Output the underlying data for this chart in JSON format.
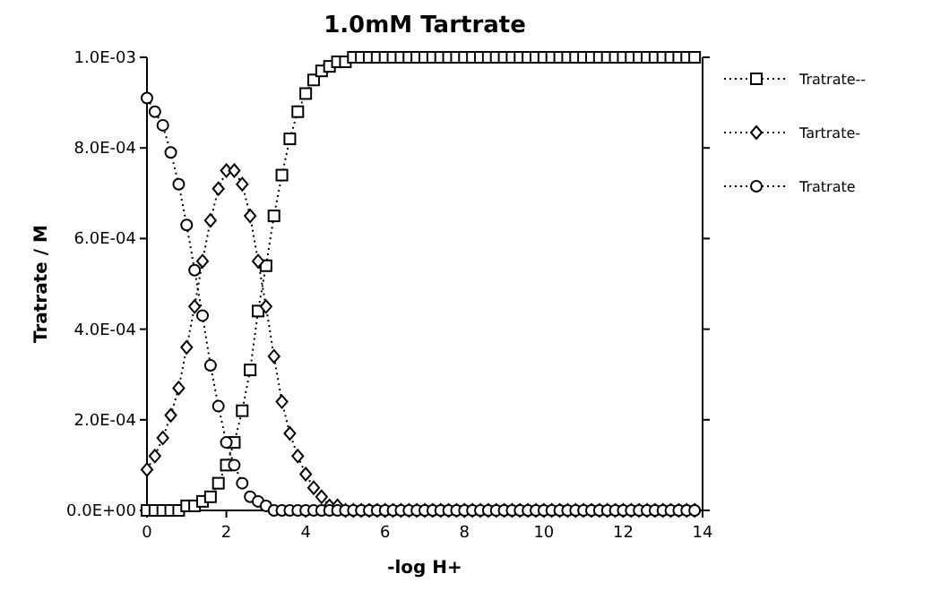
{
  "chart_data": {
    "type": "line",
    "title": "1.0mM Tartrate",
    "xlabel": "-log H+",
    "ylabel": "Tratrate / M",
    "x": [
      0,
      0.2,
      0.4,
      0.6,
      0.8,
      1,
      1.2,
      1.4,
      1.6,
      1.8,
      2,
      2.2,
      2.4,
      2.6,
      2.8,
      3,
      3.2,
      3.4,
      3.6,
      3.8,
      4,
      4.2,
      4.4,
      4.6,
      4.8,
      5,
      5.2,
      5.4,
      5.6,
      5.8,
      6,
      6.2,
      6.4,
      6.6,
      6.8,
      7,
      7.2,
      7.4,
      7.6,
      7.8,
      8,
      8.2,
      8.4,
      8.6,
      8.8,
      9,
      9.2,
      9.4,
      9.6,
      9.8,
      10,
      10.2,
      10.4,
      10.6,
      10.8,
      11,
      11.2,
      11.4,
      11.6,
      11.8,
      12,
      12.2,
      12.4,
      12.6,
      12.8,
      13,
      13.2,
      13.4,
      13.6,
      13.8
    ],
    "series": [
      {
        "name": "Tratrate--",
        "color": "#000000",
        "marker": "square",
        "values": [
          0,
          0,
          0,
          0,
          0,
          1e-05,
          1e-05,
          2e-05,
          3e-05,
          6e-05,
          0.0001,
          0.00015,
          0.00022,
          0.00031,
          0.00044,
          0.00054,
          0.00065,
          0.00074,
          0.00082,
          0.00088,
          0.00092,
          0.00095,
          0.00097,
          0.00098,
          0.00099,
          0.00099,
          0.001,
          0.001,
          0.001,
          0.001,
          0.001,
          0.001,
          0.001,
          0.001,
          0.001,
          0.001,
          0.001,
          0.001,
          0.001,
          0.001,
          0.001,
          0.001,
          0.001,
          0.001,
          0.001,
          0.001,
          0.001,
          0.001,
          0.001,
          0.001,
          0.001,
          0.001,
          0.001,
          0.001,
          0.001,
          0.001,
          0.001,
          0.001,
          0.001,
          0.001,
          0.001,
          0.001,
          0.001,
          0.001,
          0.001,
          0.001,
          0.001,
          0.001,
          0.001,
          0.001
        ]
      },
      {
        "name": "Tartrate-",
        "color": "#000000",
        "marker": "diamond",
        "values": [
          9e-05,
          0.00012,
          0.00016,
          0.00021,
          0.00027,
          0.00036,
          0.00045,
          0.00055,
          0.00064,
          0.00071,
          0.00075,
          0.00075,
          0.00072,
          0.00065,
          0.00055,
          0.00045,
          0.00034,
          0.00024,
          0.00017,
          0.00012,
          8e-05,
          5e-05,
          3e-05,
          1e-05,
          1e-05,
          0,
          0,
          0,
          0,
          0,
          0,
          0,
          0,
          0,
          0,
          0,
          0,
          0,
          0,
          0,
          0,
          0,
          0,
          0,
          0,
          0,
          0,
          0,
          0,
          0,
          0,
          0,
          0,
          0,
          0,
          0,
          0,
          0,
          0,
          0,
          0,
          0,
          0,
          0,
          0,
          0,
          0,
          0,
          0,
          0
        ]
      },
      {
        "name": "Tratrate",
        "color": "#000000",
        "marker": "circle",
        "values": [
          0.00091,
          0.00088,
          0.00085,
          0.00079,
          0.00072,
          0.00063,
          0.00053,
          0.00043,
          0.00032,
          0.00023,
          0.00015,
          0.0001,
          6e-05,
          3e-05,
          2e-05,
          1e-05,
          0,
          0,
          0,
          0,
          0,
          0,
          0,
          0,
          0,
          0,
          0,
          0,
          0,
          0,
          0,
          0,
          0,
          0,
          0,
          0,
          0,
          0,
          0,
          0,
          0,
          0,
          0,
          0,
          0,
          0,
          0,
          0,
          0,
          0,
          0,
          0,
          0,
          0,
          0,
          0,
          0,
          0,
          0,
          0,
          0,
          0,
          0,
          0,
          0,
          0,
          0,
          0,
          0,
          0
        ]
      }
    ],
    "xlim": [
      0,
      14
    ],
    "xticks": [
      0,
      2,
      4,
      6,
      8,
      10,
      12,
      14
    ],
    "ylim": [
      0,
      0.001
    ],
    "yticks": [
      {
        "value": 0,
        "label": "0.0E+00"
      },
      {
        "value": 0.0002,
        "label": "2.0E-04"
      },
      {
        "value": 0.0004,
        "label": "4.0E-04"
      },
      {
        "value": 0.0006,
        "label": "6.0E-04"
      },
      {
        "value": 0.0008,
        "label": "8.0E-04"
      },
      {
        "value": 0.001,
        "label": "1.0E-03"
      }
    ],
    "grid": false,
    "legend": "right",
    "line_style": "dotted"
  }
}
